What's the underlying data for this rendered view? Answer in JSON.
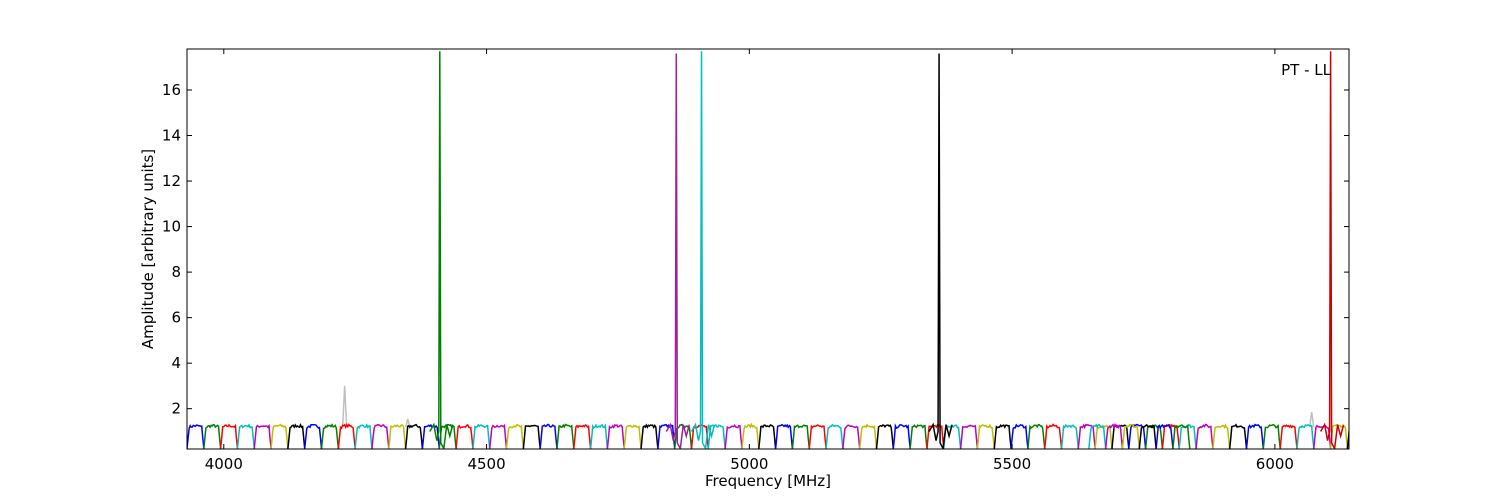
{
  "chart_data": {
    "type": "line",
    "title": "",
    "annotation": "PT - LL",
    "xlabel": "Frequency [MHz]",
    "ylabel": "Amplitude [arbitrary units]",
    "xlim": [
      3930,
      6141
    ],
    "ylim": [
      0.23,
      17.8
    ],
    "xticks": [
      4000,
      4500,
      5000,
      5500,
      6000
    ],
    "yticks": [
      2,
      4,
      6,
      8,
      10,
      12,
      14,
      16
    ],
    "grid": false,
    "color_cycle": [
      "#0000ff",
      "#008000",
      "#ff0000",
      "#00bfbf",
      "#bf00bf",
      "#bfbf00",
      "#000000"
    ],
    "bands": {
      "start": 3930,
      "width": 32,
      "level": 1.15,
      "overlap_region": [
        5630,
        5830
      ],
      "overlap_offset": 16
    },
    "spikes": [
      {
        "freq": 4411,
        "peak": 17.7,
        "color": "#008000"
      },
      {
        "freq": 4861,
        "peak": 17.6,
        "color": "#9f1f9f"
      },
      {
        "freq": 4909,
        "peak": 17.7,
        "color": "#00bfbf"
      },
      {
        "freq": 5361,
        "peak": 17.6,
        "color": "#000000"
      },
      {
        "freq": 6106,
        "peak": 17.7,
        "color": "#cc0000"
      }
    ],
    "background_spikes": [
      {
        "freq": 4230,
        "peak": 3.0
      },
      {
        "freq": 4350,
        "peak": 1.55
      },
      {
        "freq": 6070,
        "peak": 1.85
      }
    ],
    "background_color": "#bfbfbf"
  }
}
